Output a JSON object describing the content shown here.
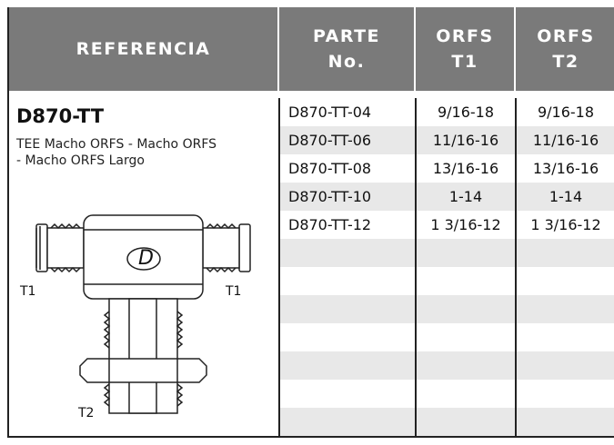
{
  "header": {
    "columns": [
      [
        "REFERENCIA"
      ],
      [
        "PARTE",
        "No."
      ],
      [
        "ORFS",
        "T1"
      ],
      [
        "ORFS",
        "T2"
      ]
    ]
  },
  "reference": {
    "code": "D870-TT",
    "description": [
      "TEE Macho ORFS - Macho ORFS",
      "- Macho ORFS Largo"
    ],
    "diagram_labels": [
      "T1",
      "T1",
      "T2"
    ]
  },
  "table": {
    "rows": [
      [
        "D870-TT-04",
        "9/16-18",
        "9/16-18"
      ],
      [
        "D870-TT-06",
        "11/16-16",
        "11/16-16"
      ],
      [
        "D870-TT-08",
        "13/16-16",
        "13/16-16"
      ],
      [
        "D870-TT-10",
        "1-14",
        "1-14"
      ],
      [
        "D870-TT-12",
        "1 3/16-12",
        "1 3/16-12"
      ]
    ]
  }
}
